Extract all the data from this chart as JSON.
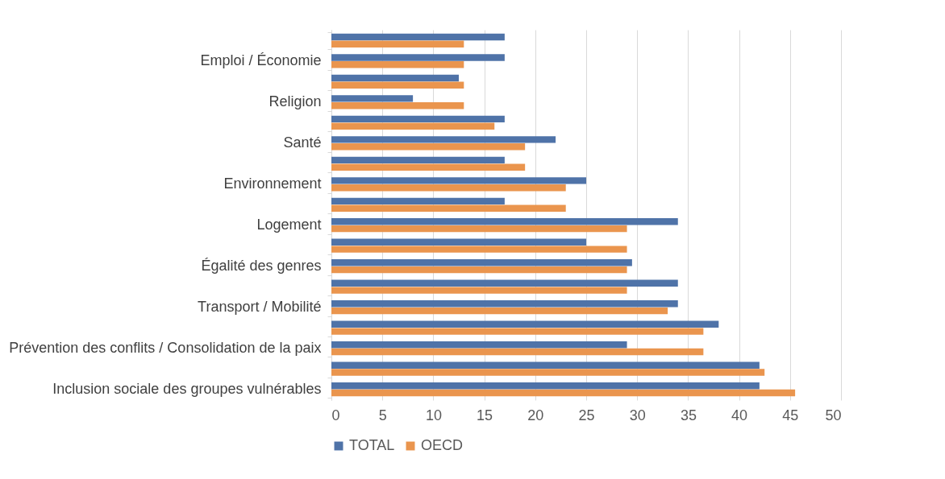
{
  "chart_data": {
    "type": "bar",
    "orientation": "horizontal",
    "categories": [
      null,
      "Emploi / Économie",
      null,
      "Religion",
      null,
      "Santé",
      null,
      "Environnement",
      null,
      "Logement",
      null,
      "Égalité des genres",
      null,
      "Transport / Mobilité",
      null,
      "Prévention des conflits / Consolidation de la paix",
      null,
      "Inclusion sociale des groupes vulnérables"
    ],
    "series": [
      {
        "name": "TOTAL",
        "color": "#4f73a8",
        "values": [
          17,
          17,
          12.5,
          8,
          17,
          22,
          17,
          25,
          17,
          34,
          25,
          29.5,
          34,
          34,
          38,
          29,
          42,
          42
        ]
      },
      {
        "name": "OECD",
        "color": "#ea954e",
        "values": [
          13,
          13,
          13,
          13,
          16,
          19,
          19,
          23,
          23,
          29,
          29,
          29,
          29,
          33,
          36.5,
          36.5,
          42.5,
          45.5
        ]
      }
    ],
    "xlim": [
      0,
      50
    ],
    "xticks": [
      0,
      5,
      10,
      15,
      20,
      25,
      30,
      35,
      40,
      45,
      50
    ],
    "grid": "x",
    "legend": "bottom"
  }
}
